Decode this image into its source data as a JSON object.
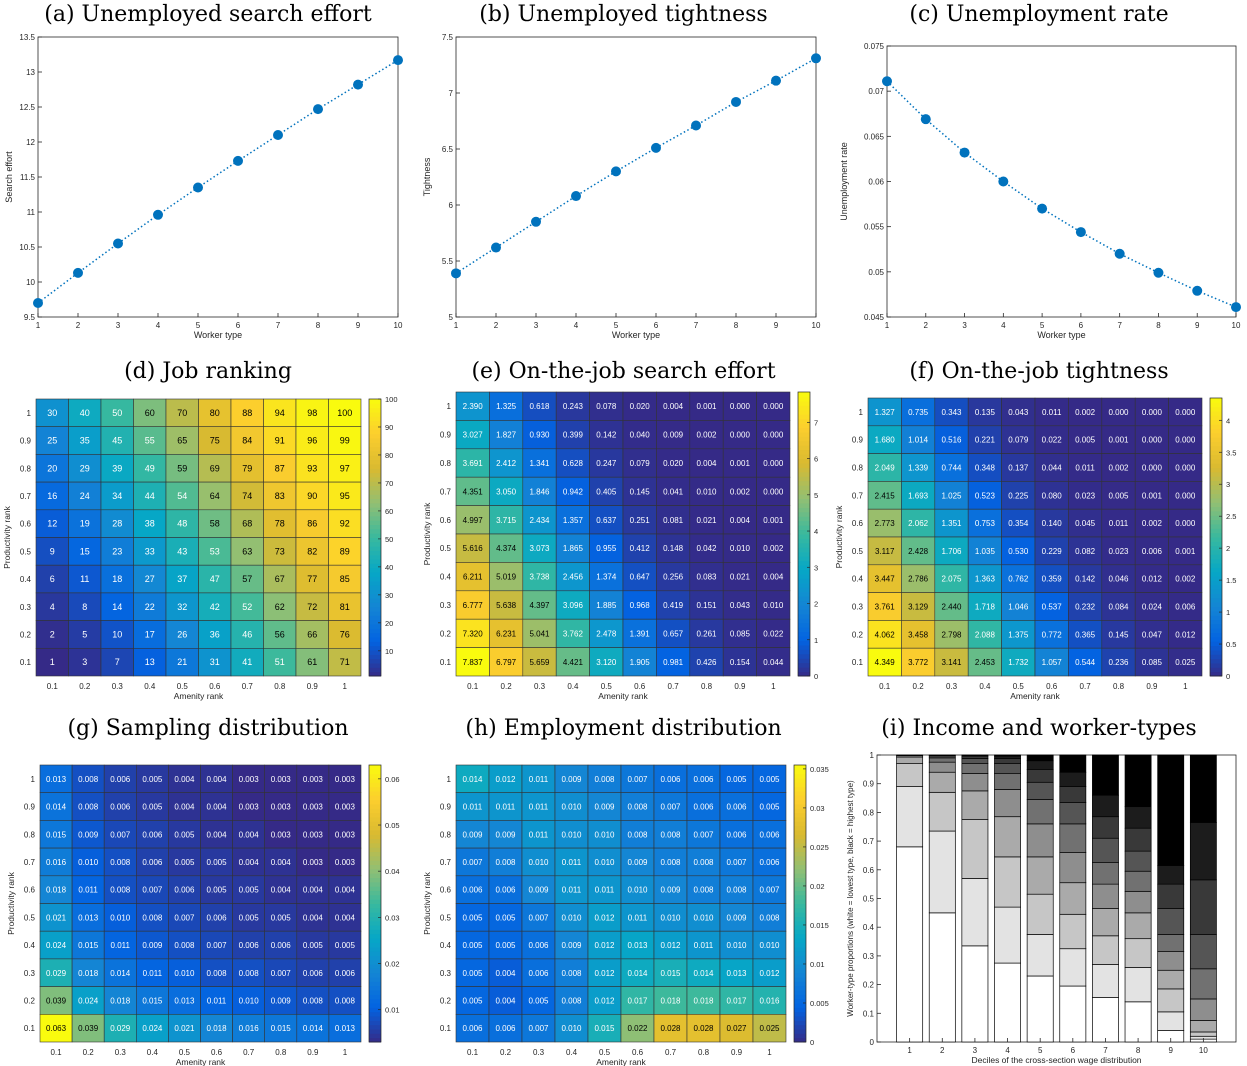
{
  "colors": {
    "marker": "#0072BD",
    "line": "#0072BD"
  },
  "chart_data": [
    {
      "id": "a",
      "type": "line",
      "title": "(a) Unemployed search effort",
      "xlabel": "Worker type",
      "ylabel": "Search effort",
      "x": [
        1,
        2,
        3,
        4,
        5,
        6,
        7,
        8,
        9,
        10
      ],
      "values": [
        9.7,
        10.13,
        10.55,
        10.96,
        11.35,
        11.73,
        12.1,
        12.47,
        12.82,
        13.17
      ],
      "xlim": [
        1,
        10
      ],
      "ylim": [
        9.5,
        13.5
      ],
      "yticks": [
        9.5,
        10,
        10.5,
        11,
        11.5,
        12,
        12.5,
        13,
        13.5
      ],
      "xticks": [
        1,
        2,
        3,
        4,
        5,
        6,
        7,
        8,
        9,
        10
      ],
      "line_style": "dotted"
    },
    {
      "id": "b",
      "type": "line",
      "title": "(b) Unemployed tightness",
      "xlabel": "Worker type",
      "ylabel": "Tightness",
      "x": [
        1,
        2,
        3,
        4,
        5,
        6,
        7,
        8,
        9,
        10
      ],
      "values": [
        5.39,
        5.62,
        5.85,
        6.08,
        6.3,
        6.51,
        6.71,
        6.92,
        7.11,
        7.31
      ],
      "xlim": [
        1,
        10
      ],
      "ylim": [
        5,
        7.5
      ],
      "yticks": [
        5,
        5.5,
        6,
        6.5,
        7,
        7.5
      ],
      "xticks": [
        1,
        2,
        3,
        4,
        5,
        6,
        7,
        8,
        9,
        10
      ],
      "line_style": "dotted"
    },
    {
      "id": "c",
      "type": "line",
      "title": "(c) Unemployment rate",
      "xlabel": "Worker type",
      "ylabel": "Unemployment rate",
      "x": [
        1,
        2,
        3,
        4,
        5,
        6,
        7,
        8,
        9,
        10
      ],
      "values": [
        0.0711,
        0.0669,
        0.0632,
        0.06,
        0.057,
        0.0544,
        0.052,
        0.0499,
        0.0479,
        0.0461
      ],
      "xlim": [
        1,
        10
      ],
      "ylim": [
        0.045,
        0.075
      ],
      "yticks": [
        0.045,
        0.05,
        0.055,
        0.06,
        0.065,
        0.07,
        0.075
      ],
      "xticks": [
        1,
        2,
        3,
        4,
        5,
        6,
        7,
        8,
        9,
        10
      ],
      "line_style": "dotted"
    },
    {
      "id": "d",
      "type": "heatmap",
      "title": "(d) Job ranking",
      "xlabel": "Amenity rank",
      "ylabel": "Productivity rank",
      "decimals": 0,
      "x": [
        "0.1",
        "0.2",
        "0.3",
        "0.4",
        "0.5",
        "0.6",
        "0.7",
        "0.8",
        "0.9",
        "1"
      ],
      "y": [
        "1",
        "0.9",
        "0.8",
        "0.7",
        "0.6",
        "0.5",
        "0.4",
        "0.3",
        "0.2",
        "0.1"
      ],
      "values": [
        [
          30,
          40,
          50,
          60,
          70,
          80,
          88,
          94,
          98,
          100
        ],
        [
          25,
          35,
          45,
          55,
          65,
          75,
          84,
          91,
          96,
          99
        ],
        [
          20,
          29,
          39,
          49,
          59,
          69,
          79,
          87,
          93,
          97
        ],
        [
          16,
          24,
          34,
          44,
          54,
          64,
          74,
          83,
          90,
          95
        ],
        [
          12,
          19,
          28,
          38,
          48,
          58,
          68,
          78,
          86,
          92
        ],
        [
          9,
          15,
          23,
          33,
          43,
          53,
          63,
          73,
          82,
          89
        ],
        [
          6,
          11,
          18,
          27,
          37,
          47,
          57,
          67,
          77,
          85
        ],
        [
          4,
          8,
          14,
          22,
          32,
          42,
          52,
          62,
          72,
          81
        ],
        [
          2,
          5,
          10,
          17,
          26,
          36,
          46,
          56,
          66,
          76
        ],
        [
          1,
          3,
          7,
          13,
          21,
          31,
          41,
          51,
          61,
          71
        ]
      ],
      "clim": [
        1,
        100
      ],
      "cticks": [
        10,
        20,
        30,
        40,
        50,
        60,
        70,
        80,
        90,
        100
      ]
    },
    {
      "id": "e",
      "type": "heatmap",
      "title": "(e) On-the-job search effort",
      "xlabel": "Amenity rank",
      "ylabel": "Productivity rank",
      "decimals": 3,
      "x": [
        "0.1",
        "0.2",
        "0.3",
        "0.4",
        "0.5",
        "0.6",
        "0.7",
        "0.8",
        "0.9",
        "1"
      ],
      "y": [
        "1",
        "0.9",
        "0.8",
        "0.7",
        "0.6",
        "0.5",
        "0.4",
        "0.3",
        "0.2",
        "0.1"
      ],
      "values": [
        [
          2.39,
          1.325,
          0.618,
          0.243,
          0.078,
          0.02,
          0.004,
          0.001,
          0,
          0
        ],
        [
          3.027,
          1.827,
          0.93,
          0.399,
          0.142,
          0.04,
          0.009,
          0.002,
          0,
          0
        ],
        [
          3.691,
          2.412,
          1.341,
          0.628,
          0.247,
          0.079,
          0.02,
          0.004,
          0.001,
          0
        ],
        [
          4.351,
          3.05,
          1.846,
          0.942,
          0.405,
          0.145,
          0.041,
          0.01,
          0.002,
          0
        ],
        [
          4.997,
          3.715,
          2.434,
          1.357,
          0.637,
          0.251,
          0.081,
          0.021,
          0.004,
          0.001
        ],
        [
          5.616,
          4.374,
          3.073,
          1.865,
          0.955,
          0.412,
          0.148,
          0.042,
          0.01,
          0.002
        ],
        [
          6.211,
          5.019,
          3.738,
          2.456,
          1.374,
          0.647,
          0.256,
          0.083,
          0.021,
          0.004
        ],
        [
          6.777,
          5.638,
          4.397,
          3.096,
          1.885,
          0.968,
          0.419,
          0.151,
          0.043,
          0.01
        ],
        [
          7.32,
          6.231,
          5.041,
          3.762,
          2.478,
          1.391,
          0.657,
          0.261,
          0.085,
          0.022
        ],
        [
          7.837,
          6.797,
          5.659,
          4.421,
          3.12,
          1.905,
          0.981,
          0.426,
          0.154,
          0.044
        ]
      ],
      "clim": [
        0,
        7.837
      ],
      "cticks": [
        0,
        1,
        2,
        3,
        4,
        5,
        6,
        7
      ]
    },
    {
      "id": "f",
      "type": "heatmap",
      "title": "(f) On-the-job tightness",
      "xlabel": "Amenity rank",
      "ylabel": "Productivity rank",
      "decimals": 3,
      "x": [
        "0.1",
        "0.2",
        "0.3",
        "0.4",
        "0.5",
        "0.6",
        "0.7",
        "0.8",
        "0.9",
        "1"
      ],
      "y": [
        "1",
        "0.9",
        "0.8",
        "0.7",
        "0.6",
        "0.5",
        "0.4",
        "0.3",
        "0.2",
        "0.1"
      ],
      "values": [
        [
          1.327,
          0.735,
          0.343,
          0.135,
          0.043,
          0.011,
          0.002,
          0,
          0,
          0
        ],
        [
          1.68,
          1.014,
          0.516,
          0.221,
          0.079,
          0.022,
          0.005,
          0.001,
          0,
          0
        ],
        [
          2.049,
          1.339,
          0.744,
          0.348,
          0.137,
          0.044,
          0.011,
          0.002,
          0,
          0
        ],
        [
          2.415,
          1.693,
          1.025,
          0.523,
          0.225,
          0.08,
          0.023,
          0.005,
          0.001,
          0
        ],
        [
          2.773,
          2.062,
          1.351,
          0.753,
          0.354,
          0.14,
          0.045,
          0.011,
          0.002,
          0
        ],
        [
          3.117,
          2.428,
          1.706,
          1.035,
          0.53,
          0.229,
          0.082,
          0.023,
          0.006,
          0.001
        ],
        [
          3.447,
          2.786,
          2.075,
          1.363,
          0.762,
          0.359,
          0.142,
          0.046,
          0.012,
          0.002
        ],
        [
          3.761,
          3.129,
          2.44,
          1.718,
          1.046,
          0.537,
          0.232,
          0.084,
          0.024,
          0.006
        ],
        [
          4.062,
          3.458,
          2.798,
          2.088,
          1.375,
          0.772,
          0.365,
          0.145,
          0.047,
          0.012
        ],
        [
          4.349,
          3.772,
          3.141,
          2.453,
          1.732,
          1.057,
          0.544,
          0.236,
          0.085,
          0.025
        ]
      ],
      "clim": [
        0,
        4.349
      ],
      "cticks": [
        0,
        0.5,
        1,
        1.5,
        2,
        2.5,
        3,
        3.5,
        4
      ]
    },
    {
      "id": "g",
      "type": "heatmap",
      "title": "(g) Sampling distribution",
      "xlabel": "Amenity rank",
      "ylabel": "Productivity rank",
      "decimals": 3,
      "x": [
        "0.1",
        "0.2",
        "0.3",
        "0.4",
        "0.5",
        "0.6",
        "0.7",
        "0.8",
        "0.9",
        "1"
      ],
      "y": [
        "1",
        "0.9",
        "0.8",
        "0.7",
        "0.6",
        "0.5",
        "0.4",
        "0.3",
        "0.2",
        "0.1"
      ],
      "values": [
        [
          0.013,
          0.008,
          0.006,
          0.005,
          0.004,
          0.004,
          0.003,
          0.003,
          0.003,
          0.003
        ],
        [
          0.014,
          0.008,
          0.006,
          0.005,
          0.004,
          0.004,
          0.003,
          0.003,
          0.003,
          0.003
        ],
        [
          0.015,
          0.009,
          0.007,
          0.006,
          0.005,
          0.004,
          0.004,
          0.003,
          0.003,
          0.003
        ],
        [
          0.016,
          0.01,
          0.008,
          0.006,
          0.005,
          0.005,
          0.004,
          0.004,
          0.003,
          0.003
        ],
        [
          0.018,
          0.011,
          0.008,
          0.007,
          0.006,
          0.005,
          0.005,
          0.004,
          0.004,
          0.004
        ],
        [
          0.021,
          0.013,
          0.01,
          0.008,
          0.007,
          0.006,
          0.005,
          0.005,
          0.004,
          0.004
        ],
        [
          0.024,
          0.015,
          0.011,
          0.009,
          0.008,
          0.007,
          0.006,
          0.006,
          0.005,
          0.005
        ],
        [
          0.029,
          0.018,
          0.014,
          0.011,
          0.01,
          0.008,
          0.008,
          0.007,
          0.006,
          0.006
        ],
        [
          0.039,
          0.024,
          0.018,
          0.015,
          0.013,
          0.011,
          0.01,
          0.009,
          0.008,
          0.008
        ],
        [
          0.063,
          0.039,
          0.029,
          0.024,
          0.021,
          0.018,
          0.016,
          0.015,
          0.014,
          0.013
        ]
      ],
      "clim": [
        0.003,
        0.063
      ],
      "cticks": [
        0.01,
        0.02,
        0.03,
        0.04,
        0.05,
        0.06
      ]
    },
    {
      "id": "h",
      "type": "heatmap",
      "title": "(h) Employment distribution",
      "xlabel": "Amenity rank",
      "ylabel": "Productivity rank",
      "decimals": 3,
      "x": [
        "0.1",
        "0.2",
        "0.3",
        "0.4",
        "0.5",
        "0.6",
        "0.7",
        "0.8",
        "0.9",
        "1"
      ],
      "y": [
        "1",
        "0.9",
        "0.8",
        "0.7",
        "0.6",
        "0.5",
        "0.4",
        "0.3",
        "0.2",
        "0.1"
      ],
      "values": [
        [
          0.014,
          0.012,
          0.011,
          0.009,
          0.008,
          0.007,
          0.006,
          0.006,
          0.005,
          0.005
        ],
        [
          0.011,
          0.011,
          0.011,
          0.01,
          0.009,
          0.008,
          0.007,
          0.006,
          0.006,
          0.005
        ],
        [
          0.009,
          0.009,
          0.011,
          0.01,
          0.01,
          0.008,
          0.008,
          0.007,
          0.006,
          0.006
        ],
        [
          0.007,
          0.008,
          0.01,
          0.011,
          0.01,
          0.009,
          0.008,
          0.008,
          0.007,
          0.006
        ],
        [
          0.006,
          0.006,
          0.009,
          0.011,
          0.011,
          0.01,
          0.009,
          0.008,
          0.008,
          0.007
        ],
        [
          0.005,
          0.005,
          0.007,
          0.01,
          0.012,
          0.011,
          0.01,
          0.01,
          0.009,
          0.008
        ],
        [
          0.005,
          0.005,
          0.006,
          0.009,
          0.012,
          0.013,
          0.012,
          0.011,
          0.01,
          0.01
        ],
        [
          0.005,
          0.004,
          0.006,
          0.008,
          0.012,
          0.014,
          0.015,
          0.014,
          0.013,
          0.012
        ],
        [
          0.005,
          0.004,
          0.005,
          0.008,
          0.012,
          0.017,
          0.018,
          0.018,
          0.017,
          0.016
        ],
        [
          0.006,
          0.006,
          0.007,
          0.01,
          0.015,
          0.022,
          0.028,
          0.028,
          0.027,
          0.025
        ]
      ],
      "clim": [
        0,
        0.0355
      ],
      "cticks": [
        0,
        0.005,
        0.01,
        0.015,
        0.02,
        0.025,
        0.03,
        0.035
      ]
    },
    {
      "id": "i",
      "type": "bar",
      "stacked": true,
      "title": "(i) Income and worker-types",
      "xlabel": "Deciles of the cross-section wage distribution",
      "ylabel": "Worker-type proportions (white = lowest type, black = highest type)",
      "categories": [
        "1",
        "2",
        "3",
        "4",
        "5",
        "6",
        "7",
        "8",
        "9",
        "10"
      ],
      "cumulative": [
        [
          0.68,
          0.89,
          0.97,
          0.993,
          0.998,
          0.999,
          1,
          1,
          1,
          1
        ],
        [
          0.45,
          0.735,
          0.87,
          0.94,
          0.975,
          0.99,
          0.997,
          0.999,
          1,
          1
        ],
        [
          0.335,
          0.57,
          0.775,
          0.875,
          0.936,
          0.97,
          0.988,
          0.996,
          0.999,
          1
        ],
        [
          0.275,
          0.47,
          0.645,
          0.785,
          0.88,
          0.935,
          0.97,
          0.988,
          0.996,
          1
        ],
        [
          0.23,
          0.375,
          0.515,
          0.645,
          0.76,
          0.845,
          0.905,
          0.95,
          0.98,
          1
        ],
        [
          0.195,
          0.325,
          0.445,
          0.555,
          0.66,
          0.76,
          0.835,
          0.89,
          0.94,
          1
        ],
        [
          0.155,
          0.27,
          0.37,
          0.465,
          0.55,
          0.625,
          0.71,
          0.785,
          0.86,
          1
        ],
        [
          0.14,
          0.26,
          0.36,
          0.45,
          0.525,
          0.595,
          0.665,
          0.745,
          0.82,
          1
        ],
        [
          0.04,
          0.105,
          0.185,
          0.25,
          0.315,
          0.375,
          0.465,
          0.55,
          0.615,
          1
        ],
        [
          0.01,
          0.02,
          0.035,
          0.075,
          0.15,
          0.255,
          0.375,
          0.565,
          0.765,
          1
        ]
      ],
      "ylim": [
        0,
        1
      ],
      "yticks": [
        0,
        0.1,
        0.2,
        0.3,
        0.4,
        0.5,
        0.6,
        0.7,
        0.8,
        0.9,
        1
      ]
    }
  ]
}
